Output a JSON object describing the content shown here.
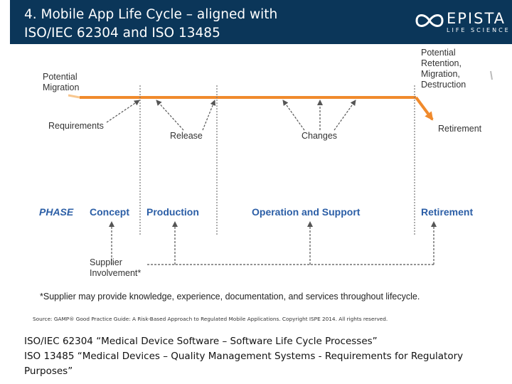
{
  "slide": {
    "title": "4. Mobile App Life Cycle – aligned with\nISO/IEC 62304 and ISO 13485"
  },
  "logo": {
    "name": "EPISTA",
    "tagline": "LIFE SCIENCE",
    "icon": "infinity-loop-icon"
  },
  "diagram": {
    "top_labels": {
      "potential_migration": "Potential\nMigration",
      "requirements": "Requirements",
      "release": "Release",
      "changes": "Changes",
      "potential_retention": "Potential\nRetention,\nMigration,\nDestruction",
      "retirement": "Retirement"
    },
    "phase_row": {
      "label": "PHASE",
      "concept": "Concept",
      "production": "Production",
      "operation": "Operation and Support",
      "retirement": "Retirement"
    },
    "supplier_label": "Supplier\nInvolvement*",
    "footnote": "*Supplier may provide knowledge, experience, documentation, and services throughout lifecycle.",
    "colors": {
      "accent": "#f08a2c",
      "phase": "#2b5ea6",
      "header": "#0b3659",
      "line": "#555555"
    }
  },
  "source": "Source: GAMP® Good Practice Guide: A Risk-Based Approach to Regulated Mobile Applications. Copyright ISPE 2014. All rights reserved.",
  "standards": {
    "line1": "ISO/IEC 62304 “Medical Device Software – Software Life Cycle Processes”",
    "line2": "ISO 13485 “Medical Devices – Quality Management Systems - Requirements for Regulatory",
    "line3": "Purposes”"
  }
}
